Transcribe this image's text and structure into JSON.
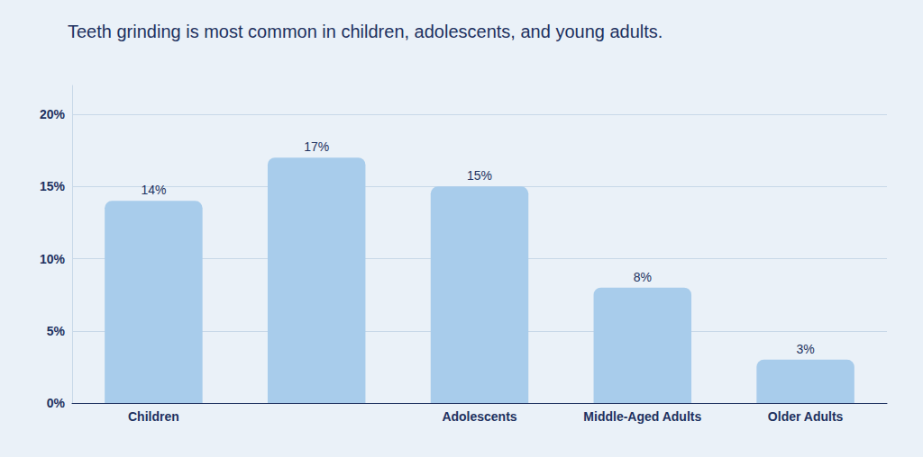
{
  "chart_data": {
    "type": "bar",
    "title": "Teeth grinding is most common in children, adolescents, and young adults.",
    "categories": [
      "Children",
      null,
      "Adolescents",
      "Middle-Aged Adults",
      "Older Adults"
    ],
    "values": [
      14,
      17,
      15,
      8,
      3
    ],
    "value_labels": [
      "14%",
      "17%",
      "15%",
      "8%",
      "3%"
    ],
    "data_labels": true,
    "color": "#a8cceb",
    "ylim": [
      0,
      22
    ],
    "yticks": [
      {
        "value": 0,
        "label": "0%"
      },
      {
        "value": 5,
        "label": "5%"
      },
      {
        "value": 10,
        "label": "10%"
      },
      {
        "value": 15,
        "label": "15%"
      },
      {
        "value": 20,
        "label": "20%"
      }
    ],
    "grid": true
  }
}
